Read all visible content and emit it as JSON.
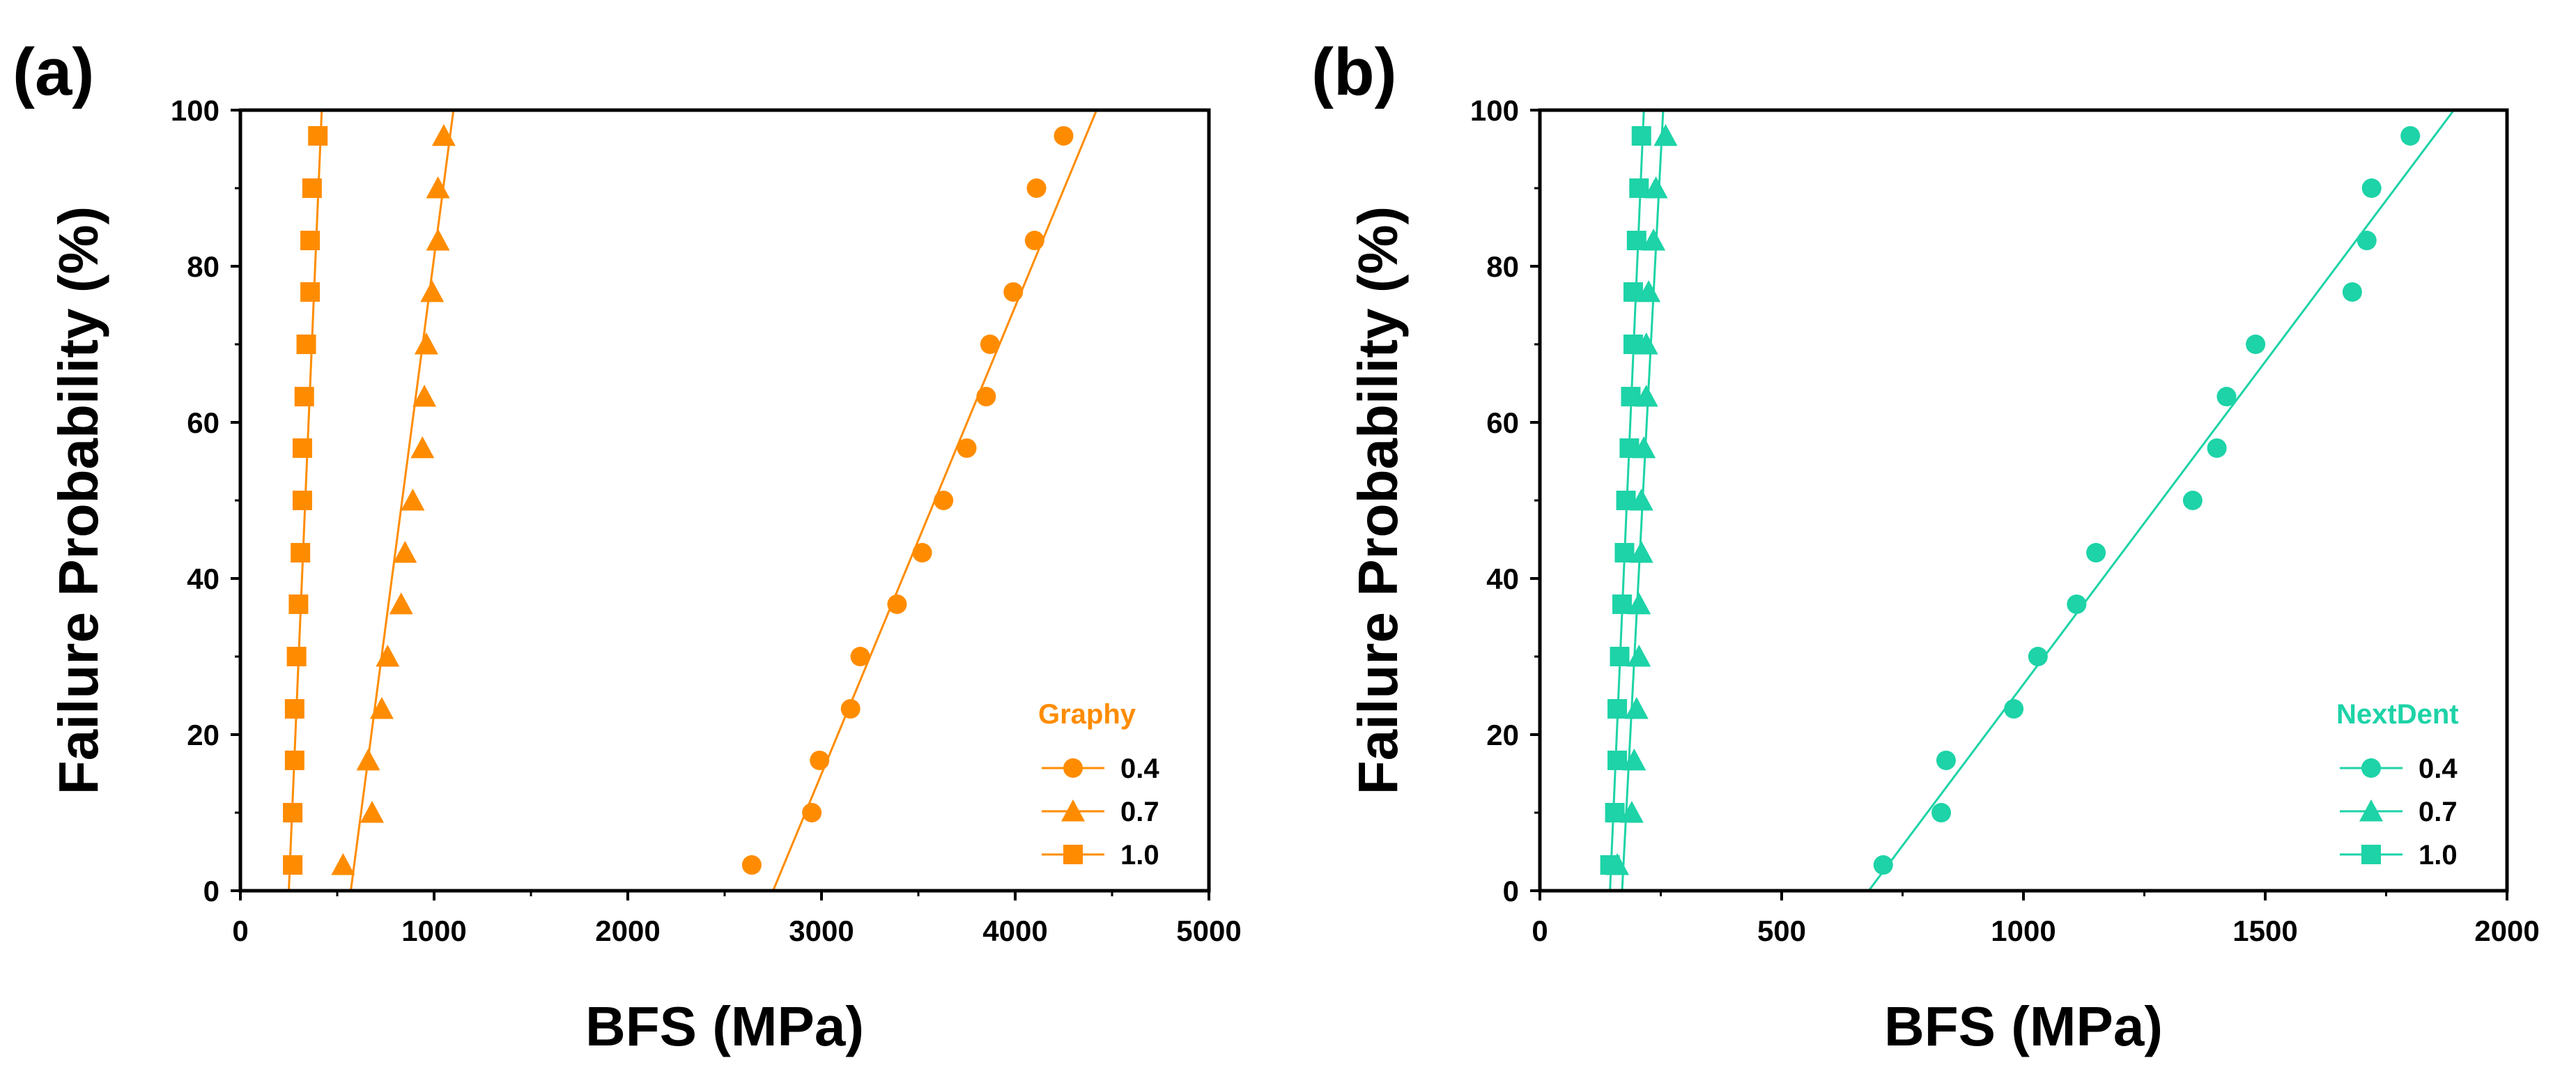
{
  "chart_data": [
    {
      "type": "scatter",
      "panel_label": "(a)",
      "xlabel": "BFS (MPa)",
      "ylabel": "Failure Probability (%)",
      "xlim": [
        0,
        5000
      ],
      "ylim": [
        0,
        100
      ],
      "xticks": [
        0,
        1000,
        2000,
        3000,
        4000,
        5000
      ],
      "yticks": [
        0,
        20,
        40,
        60,
        80,
        100
      ],
      "grid": false,
      "color": "#FF8C00",
      "legend": {
        "title": "Graphy",
        "position": "bottom-right"
      },
      "series": [
        {
          "name": "0.4",
          "marker": "circle",
          "x": [
            2640,
            2950,
            2990,
            3150,
            3200,
            3390,
            3520,
            3630,
            3750,
            3850,
            3870,
            3990,
            4100,
            4110,
            4250
          ],
          "y": [
            3.3,
            10,
            16.7,
            23.3,
            30,
            36.7,
            43.3,
            50,
            56.7,
            63.3,
            70,
            76.7,
            83.3,
            90,
            96.7
          ],
          "fit": [
            [
              2750,
              0
            ],
            [
              4420,
              100
            ]
          ]
        },
        {
          "name": "0.7",
          "marker": "triangle",
          "x": [
            530,
            680,
            660,
            730,
            760,
            830,
            850,
            890,
            940,
            950,
            960,
            990,
            1020,
            1020,
            1050
          ],
          "y": [
            3.3,
            10,
            16.7,
            23.3,
            30,
            36.7,
            43.3,
            50,
            56.7,
            63.3,
            70,
            76.7,
            83.3,
            90,
            96.7
          ],
          "fit": [
            [
              570,
              0
            ],
            [
              1100,
              100
            ]
          ]
        },
        {
          "name": "1.0",
          "marker": "square",
          "x": [
            270,
            270,
            280,
            280,
            290,
            300,
            310,
            320,
            320,
            330,
            340,
            360,
            360,
            370,
            400
          ],
          "y": [
            3.3,
            10,
            16.7,
            23.3,
            30,
            36.7,
            43.3,
            50,
            56.7,
            63.3,
            70,
            76.7,
            83.3,
            90,
            96.7
          ],
          "fit": [
            [
              250,
              0
            ],
            [
              420,
              100
            ]
          ]
        }
      ]
    },
    {
      "type": "scatter",
      "panel_label": "(b)",
      "xlabel": "BFS (MPa)",
      "ylabel": "Failure Probability (%)",
      "xlim": [
        0,
        2000
      ],
      "ylim": [
        0,
        100
      ],
      "xticks": [
        0,
        500,
        1000,
        1500,
        2000
      ],
      "yticks": [
        0,
        20,
        40,
        60,
        80,
        100
      ],
      "grid": false,
      "color": "#1DD3A7",
      "legend": {
        "title": "NextDent",
        "position": "bottom-right"
      },
      "series": [
        {
          "name": "0.4",
          "marker": "circle",
          "x": [
            710,
            830,
            840,
            980,
            1030,
            1110,
            1150,
            1350,
            1400,
            1420,
            1480,
            1680,
            1710,
            1720,
            1800
          ],
          "y": [
            3.3,
            10,
            16.7,
            23.3,
            30,
            36.7,
            43.3,
            50,
            56.7,
            63.3,
            70,
            76.7,
            83.3,
            90,
            96.7
          ],
          "fit": [
            [
              680,
              0
            ],
            [
              1890,
              100
            ]
          ]
        },
        {
          "name": "0.7",
          "marker": "triangle",
          "x": [
            160,
            190,
            195,
            200,
            205,
            205,
            210,
            210,
            215,
            220,
            220,
            225,
            235,
            240,
            260
          ],
          "y": [
            3.3,
            10,
            16.7,
            23.3,
            30,
            36.7,
            43.3,
            50,
            56.7,
            63.3,
            70,
            76.7,
            83.3,
            90,
            96.7
          ],
          "fit": [
            [
              170,
              0
            ],
            [
              255,
              100
            ]
          ]
        },
        {
          "name": "1.0",
          "marker": "square",
          "x": [
            145,
            155,
            160,
            160,
            165,
            170,
            175,
            178,
            185,
            188,
            193,
            193,
            200,
            205,
            210
          ],
          "y": [
            3.3,
            10,
            16.7,
            23.3,
            30,
            36.7,
            43.3,
            50,
            56.7,
            63.3,
            70,
            76.7,
            83.3,
            90,
            96.7
          ],
          "fit": [
            [
              145,
              0
            ],
            [
              215,
              100
            ]
          ]
        }
      ]
    }
  ]
}
